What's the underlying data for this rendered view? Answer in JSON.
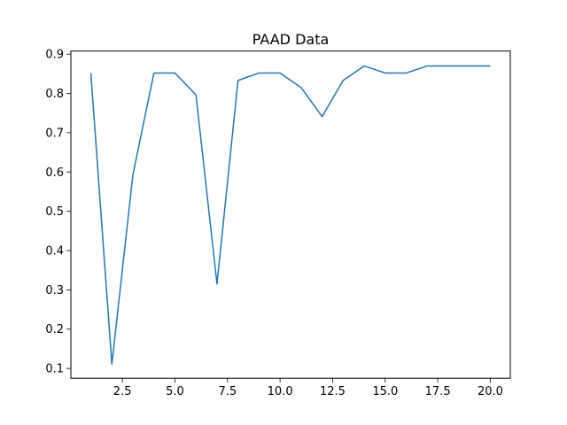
{
  "chart_data": {
    "type": "line",
    "title": "PAAD Data",
    "xlabel": "",
    "ylabel": "",
    "xlim": [
      0.05,
      20.95
    ],
    "ylim": [
      0.075,
      0.908
    ],
    "xticks": [
      "2.5",
      "5.0",
      "7.5",
      "10.0",
      "12.5",
      "15.0",
      "17.5",
      "20.0"
    ],
    "yticks": [
      "0.1",
      "0.2",
      "0.3",
      "0.4",
      "0.5",
      "0.6",
      "0.7",
      "0.8",
      "0.9"
    ],
    "grid": false,
    "series": [
      {
        "color": "#1f77b4",
        "x": [
          1,
          2,
          3,
          4,
          5,
          6,
          7,
          8,
          9,
          10,
          11,
          12,
          13,
          14,
          15,
          16,
          17,
          18,
          19,
          20
        ],
        "y": [
          0.852,
          0.111,
          0.593,
          0.852,
          0.852,
          0.796,
          0.315,
          0.833,
          0.852,
          0.852,
          0.815,
          0.741,
          0.833,
          0.87,
          0.852,
          0.852,
          0.87,
          0.87,
          0.87,
          0.87
        ]
      }
    ]
  }
}
